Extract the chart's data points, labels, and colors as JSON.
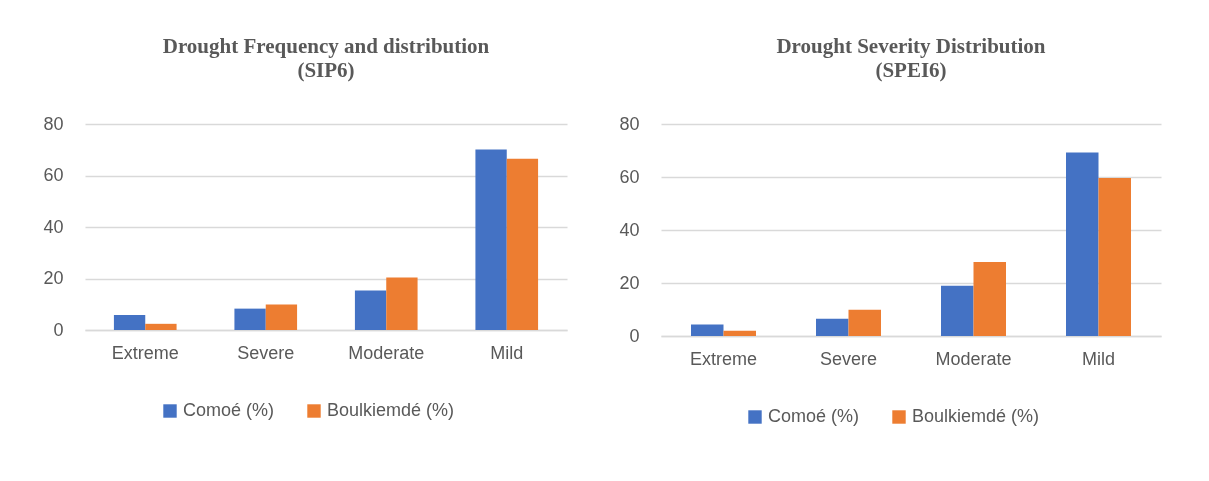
{
  "chart_data": [
    {
      "type": "bar",
      "title": "Drought Frequency and distribution\n(SIP6)",
      "categories": [
        "Extreme",
        "Severe",
        "Moderate",
        "Mild"
      ],
      "series": [
        {
          "name": "Comoé (%)",
          "color": "#4472c4",
          "values": [
            5.8,
            8.3,
            15.3,
            70.1
          ]
        },
        {
          "name": "Boulkiemdé (%)",
          "color": "#ed7d31",
          "values": [
            2.4,
            9.9,
            20.4,
            66.5
          ]
        }
      ],
      "ylim": [
        0,
        80
      ],
      "yticks": [
        0,
        20,
        40,
        60,
        80
      ],
      "grid": "y",
      "legend": "bottom"
    },
    {
      "type": "bar",
      "title": "Drought Severity Distribution\n(SPEI6)",
      "categories": [
        "Extreme",
        "Severe",
        "Moderate",
        "Mild"
      ],
      "series": [
        {
          "name": "Comoé (%)",
          "color": "#4472c4",
          "values": [
            4.3,
            6.5,
            19.0,
            69.2
          ]
        },
        {
          "name": "Boulkiemdé (%)",
          "color": "#ed7d31",
          "values": [
            2.0,
            9.9,
            27.9,
            59.6
          ]
        }
      ],
      "ylim": [
        0,
        80
      ],
      "yticks": [
        0,
        20,
        40,
        60,
        80
      ],
      "grid": "y",
      "legend": "bottom"
    }
  ]
}
